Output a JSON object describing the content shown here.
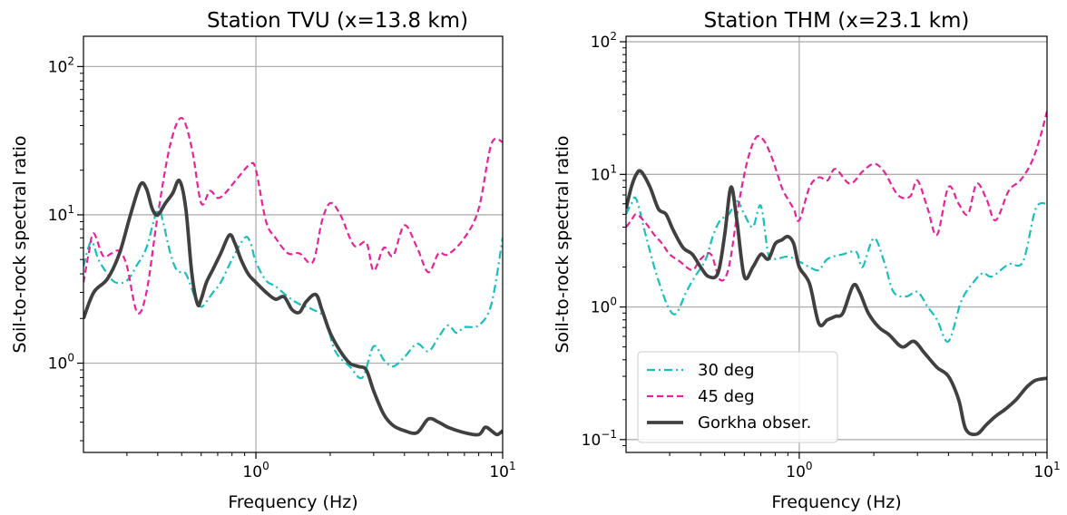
{
  "chart_data": [
    {
      "type": "line",
      "title": "Station TVU (x=13.8 km)",
      "xlabel": "Frequency (Hz)",
      "ylabel": "Soil-to-rock spectral ratio",
      "xscale": "log",
      "yscale": "log",
      "xlim": [
        0.2,
        10
      ],
      "ylim": [
        0.25,
        160
      ],
      "grid": true,
      "legend": "none",
      "x_ticks": [
        {
          "base": "10",
          "exp": "0",
          "value": 1
        },
        {
          "base": "10",
          "exp": "1",
          "value": 10
        }
      ],
      "y_ticks": [
        {
          "base": "10",
          "exp": "0",
          "value": 1
        },
        {
          "base": "10",
          "exp": "1",
          "value": 10
        },
        {
          "base": "10",
          "exp": "2",
          "value": 100
        }
      ],
      "series": [
        {
          "name": "30 deg",
          "style": "dashdot",
          "color": "#17bfbf",
          "x": [
            0.2,
            0.215,
            0.23,
            0.25,
            0.27,
            0.3,
            0.33,
            0.36,
            0.4,
            0.42,
            0.45,
            0.48,
            0.52,
            0.57,
            0.6,
            0.63,
            0.67,
            0.72,
            0.8,
            0.9,
            0.95,
            1.0,
            1.1,
            1.2,
            1.35,
            1.5,
            1.7,
            1.9,
            2.1,
            2.4,
            2.7,
            3.0,
            3.3,
            3.6,
            4.0,
            4.5,
            5.0,
            5.5,
            6.0,
            6.5,
            7.0,
            8.0,
            9.0,
            10.0
          ],
          "y": [
            4.5,
            6.6,
            5.0,
            4.0,
            3.5,
            3.6,
            4.6,
            6.0,
            11.0,
            9.0,
            5.5,
            4.2,
            4.0,
            2.7,
            2.4,
            2.6,
            3.0,
            3.5,
            5.0,
            7.0,
            6.5,
            4.8,
            3.6,
            3.3,
            2.8,
            2.5,
            2.3,
            2.0,
            1.2,
            0.95,
            0.8,
            1.3,
            1.05,
            0.95,
            1.1,
            1.35,
            1.2,
            1.5,
            1.8,
            1.6,
            1.75,
            1.8,
            2.5,
            7.0
          ]
        },
        {
          "name": "45 deg",
          "style": "dashed",
          "color": "#e8229a",
          "x": [
            0.2,
            0.21,
            0.22,
            0.24,
            0.26,
            0.28,
            0.3,
            0.33,
            0.36,
            0.4,
            0.45,
            0.5,
            0.55,
            0.6,
            0.65,
            0.7,
            0.75,
            0.85,
            0.95,
            1.0,
            1.1,
            1.2,
            1.35,
            1.5,
            1.7,
            1.85,
            2.0,
            2.2,
            2.5,
            2.8,
            3.0,
            3.3,
            3.6,
            4.0,
            4.5,
            5.0,
            5.5,
            6.0,
            7.0,
            8.0,
            9.0,
            10.0
          ],
          "y": [
            3.5,
            5.5,
            7.5,
            5.3,
            5.5,
            5.7,
            4.5,
            2.2,
            3.0,
            10.0,
            30.0,
            45.0,
            28.0,
            12.0,
            14.5,
            13.0,
            14.0,
            18.0,
            22.0,
            20.0,
            9.0,
            7.0,
            5.5,
            5.5,
            4.8,
            9.0,
            12.0,
            10.0,
            6.2,
            6.5,
            4.2,
            6.0,
            5.3,
            8.5,
            6.0,
            4.1,
            5.5,
            5.4,
            7.0,
            11.0,
            30.0,
            31.0
          ]
        },
        {
          "name": "Gorkha obser.",
          "style": "solid",
          "color": "#404040",
          "x": [
            0.2,
            0.22,
            0.25,
            0.28,
            0.31,
            0.34,
            0.36,
            0.38,
            0.4,
            0.43,
            0.46,
            0.49,
            0.52,
            0.55,
            0.58,
            0.6,
            0.63,
            0.67,
            0.72,
            0.78,
            0.82,
            0.87,
            0.93,
            1.0,
            1.1,
            1.2,
            1.3,
            1.4,
            1.5,
            1.6,
            1.75,
            1.85,
            2.0,
            2.2,
            2.4,
            2.6,
            2.8,
            3.0,
            3.3,
            3.6,
            4.0,
            4.5,
            5.0,
            5.5,
            6.0,
            7.0,
            8.0,
            8.5,
            9.0,
            9.5,
            10.0
          ],
          "y": [
            2.0,
            3.0,
            3.7,
            5.5,
            10.0,
            16.0,
            15.0,
            11.0,
            10.0,
            12.0,
            14.0,
            17.0,
            11.0,
            4.0,
            2.5,
            2.7,
            3.5,
            4.3,
            5.5,
            7.3,
            6.5,
            5.0,
            4.0,
            3.5,
            3.0,
            2.7,
            2.8,
            2.3,
            2.2,
            2.6,
            2.9,
            2.3,
            1.6,
            1.2,
            1.0,
            0.95,
            0.9,
            0.65,
            0.45,
            0.38,
            0.35,
            0.34,
            0.42,
            0.4,
            0.37,
            0.34,
            0.33,
            0.37,
            0.35,
            0.33,
            0.35
          ]
        }
      ]
    },
    {
      "type": "line",
      "title": "Station THM (x=23.1 km)",
      "xlabel": "Frequency (Hz)",
      "ylabel": "Soil-to-rock spectral ratio",
      "xscale": "log",
      "yscale": "log",
      "xlim": [
        0.2,
        10
      ],
      "ylim": [
        0.08,
        110
      ],
      "grid": true,
      "legend": "lower-left",
      "x_ticks": [
        {
          "base": "10",
          "exp": "0",
          "value": 1
        },
        {
          "base": "10",
          "exp": "1",
          "value": 10
        }
      ],
      "y_ticks": [
        {
          "base": "10",
          "exp": "−1",
          "value": 0.1
        },
        {
          "base": "10",
          "exp": "0",
          "value": 1
        },
        {
          "base": "10",
          "exp": "1",
          "value": 10
        },
        {
          "base": "10",
          "exp": "2",
          "value": 100
        }
      ],
      "series": [
        {
          "name": "30 deg",
          "style": "dashdot",
          "color": "#17bfbf",
          "x": [
            0.2,
            0.21,
            0.22,
            0.24,
            0.26,
            0.28,
            0.3,
            0.32,
            0.35,
            0.38,
            0.42,
            0.45,
            0.48,
            0.52,
            0.56,
            0.6,
            0.65,
            0.7,
            0.75,
            0.8,
            0.9,
            1.0,
            1.1,
            1.2,
            1.3,
            1.5,
            1.7,
            1.8,
            2.0,
            2.2,
            2.4,
            2.7,
            3.0,
            3.3,
            3.6,
            4.0,
            4.5,
            5.0,
            5.5,
            6.0,
            7.0,
            8.0,
            9.0,
            10.0
          ],
          "y": [
            5.0,
            6.0,
            6.5,
            3.5,
            2.0,
            1.3,
            0.95,
            0.9,
            1.3,
            1.7,
            2.3,
            3.5,
            4.5,
            5.0,
            6.3,
            5.0,
            4.0,
            5.8,
            2.5,
            2.3,
            2.4,
            2.2,
            2.0,
            1.9,
            2.3,
            2.5,
            2.6,
            2.0,
            3.3,
            2.2,
            1.3,
            1.2,
            1.3,
            1.0,
            0.8,
            0.55,
            1.1,
            1.5,
            1.8,
            1.7,
            2.1,
            2.2,
            5.5,
            6.0
          ]
        },
        {
          "name": "45 deg",
          "style": "dashed",
          "color": "#e8229a",
          "x": [
            0.2,
            0.21,
            0.22,
            0.24,
            0.26,
            0.28,
            0.3,
            0.33,
            0.37,
            0.4,
            0.44,
            0.48,
            0.52,
            0.57,
            0.62,
            0.67,
            0.72,
            0.78,
            0.85,
            0.9,
            0.95,
            1.0,
            1.1,
            1.2,
            1.3,
            1.4,
            1.6,
            1.8,
            2.0,
            2.2,
            2.5,
            2.8,
            3.0,
            3.3,
            3.6,
            4.0,
            4.4,
            4.8,
            5.2,
            5.7,
            6.2,
            7.0,
            7.8,
            8.6,
            9.3,
            10.0
          ],
          "y": [
            4.0,
            4.5,
            5.0,
            4.3,
            3.5,
            3.0,
            2.5,
            2.2,
            1.9,
            2.3,
            2.5,
            1.6,
            2.0,
            6.0,
            13.0,
            19.0,
            18.0,
            13.0,
            8.0,
            6.5,
            5.5,
            4.5,
            8.0,
            9.5,
            9.0,
            11.0,
            8.5,
            10.5,
            12.0,
            10.5,
            7.0,
            6.8,
            9.0,
            5.5,
            3.5,
            8.0,
            6.0,
            5.0,
            8.5,
            6.5,
            4.5,
            7.5,
            9.0,
            12.0,
            18.0,
            30.0
          ]
        },
        {
          "name": "Gorkha obser.",
          "style": "solid",
          "color": "#404040",
          "x": [
            0.2,
            0.21,
            0.22,
            0.23,
            0.25,
            0.27,
            0.29,
            0.31,
            0.34,
            0.37,
            0.4,
            0.43,
            0.47,
            0.5,
            0.53,
            0.56,
            0.6,
            0.65,
            0.7,
            0.75,
            0.8,
            0.85,
            0.9,
            0.95,
            1.0,
            1.1,
            1.2,
            1.3,
            1.4,
            1.5,
            1.65,
            1.75,
            1.9,
            2.1,
            2.3,
            2.6,
            2.9,
            3.2,
            3.6,
            4.0,
            4.4,
            4.7,
            5.2,
            5.7,
            6.2,
            6.8,
            7.5,
            8.3,
            9.0,
            10.0
          ],
          "y": [
            5.5,
            8.0,
            10.0,
            10.5,
            8.0,
            5.5,
            5.0,
            3.8,
            2.8,
            2.5,
            2.0,
            1.7,
            1.8,
            3.5,
            8.0,
            4.5,
            1.7,
            2.0,
            2.5,
            2.3,
            3.0,
            3.2,
            3.4,
            3.0,
            2.0,
            1.5,
            0.75,
            0.8,
            0.85,
            0.9,
            1.45,
            1.3,
            0.9,
            0.7,
            0.62,
            0.5,
            0.55,
            0.45,
            0.35,
            0.3,
            0.2,
            0.12,
            0.11,
            0.13,
            0.15,
            0.17,
            0.2,
            0.25,
            0.28,
            0.29
          ]
        }
      ]
    }
  ]
}
